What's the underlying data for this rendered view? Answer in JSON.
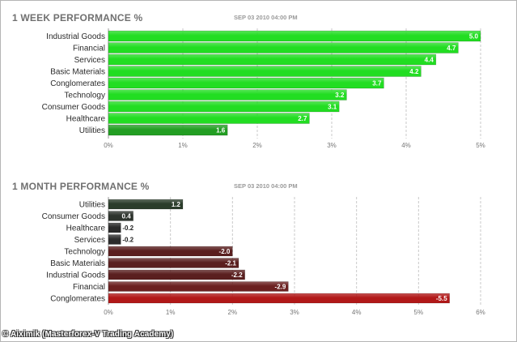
{
  "footer": "© Aiximik (Masterforex-V Trading Academy)",
  "chart_data": [
    {
      "type": "bar",
      "orientation": "horizontal",
      "title": "1 WEEK PERFORMANCE %",
      "subtitle": "SEP 03 2010 04:00 PM",
      "categories": [
        "Industrial Goods",
        "Financial",
        "Services",
        "Basic Materials",
        "Conglomerates",
        "Technology",
        "Consumer Goods",
        "Healthcare",
        "Utilities"
      ],
      "values": [
        5.0,
        4.7,
        4.4,
        4.2,
        3.7,
        3.2,
        3.1,
        2.7,
        1.6
      ],
      "value_labels": [
        "5.0",
        "4.7",
        "4.4",
        "4.2",
        "3.7",
        "3.2",
        "3.1",
        "2.7",
        "1.6"
      ],
      "xlim": [
        0,
        5
      ],
      "xticks": [
        "0%",
        "1%",
        "2%",
        "3%",
        "4%",
        "5%"
      ],
      "grid": true,
      "colors": [
        "#22dd22",
        "#22dd22",
        "#22dd22",
        "#22dd22",
        "#22dd22",
        "#22dd22",
        "#22dd22",
        "#22dd22",
        "#239e23"
      ]
    },
    {
      "type": "bar",
      "orientation": "horizontal",
      "title": "1 MONTH PERFORMANCE %",
      "subtitle": "SEP 03 2010 04:00 PM",
      "categories": [
        "Utilities",
        "Consumer Goods",
        "Healthcare",
        "Services",
        "Technology",
        "Basic Materials",
        "Industrial Goods",
        "Financial",
        "Conglomerates"
      ],
      "values": [
        1.2,
        0.4,
        -0.2,
        -0.2,
        -2.0,
        -2.1,
        -2.2,
        -2.9,
        -5.5
      ],
      "value_labels": [
        "1.2",
        "0.4",
        "-0.2",
        "-0.2",
        "-2.0",
        "-2.1",
        "-2.2",
        "-2.9",
        "-5.5"
      ],
      "xlim": [
        0,
        6
      ],
      "xticks": [
        "0%",
        "1%",
        "2%",
        "3%",
        "4%",
        "5%",
        "6%"
      ],
      "grid": true,
      "colors": [
        "#2b3d2b",
        "#2d332d",
        "#2a2a2a",
        "#2c2c2c",
        "#5a1f1f",
        "#5a1f1f",
        "#5a1f1f",
        "#6b2020",
        "#b11818"
      ]
    }
  ]
}
